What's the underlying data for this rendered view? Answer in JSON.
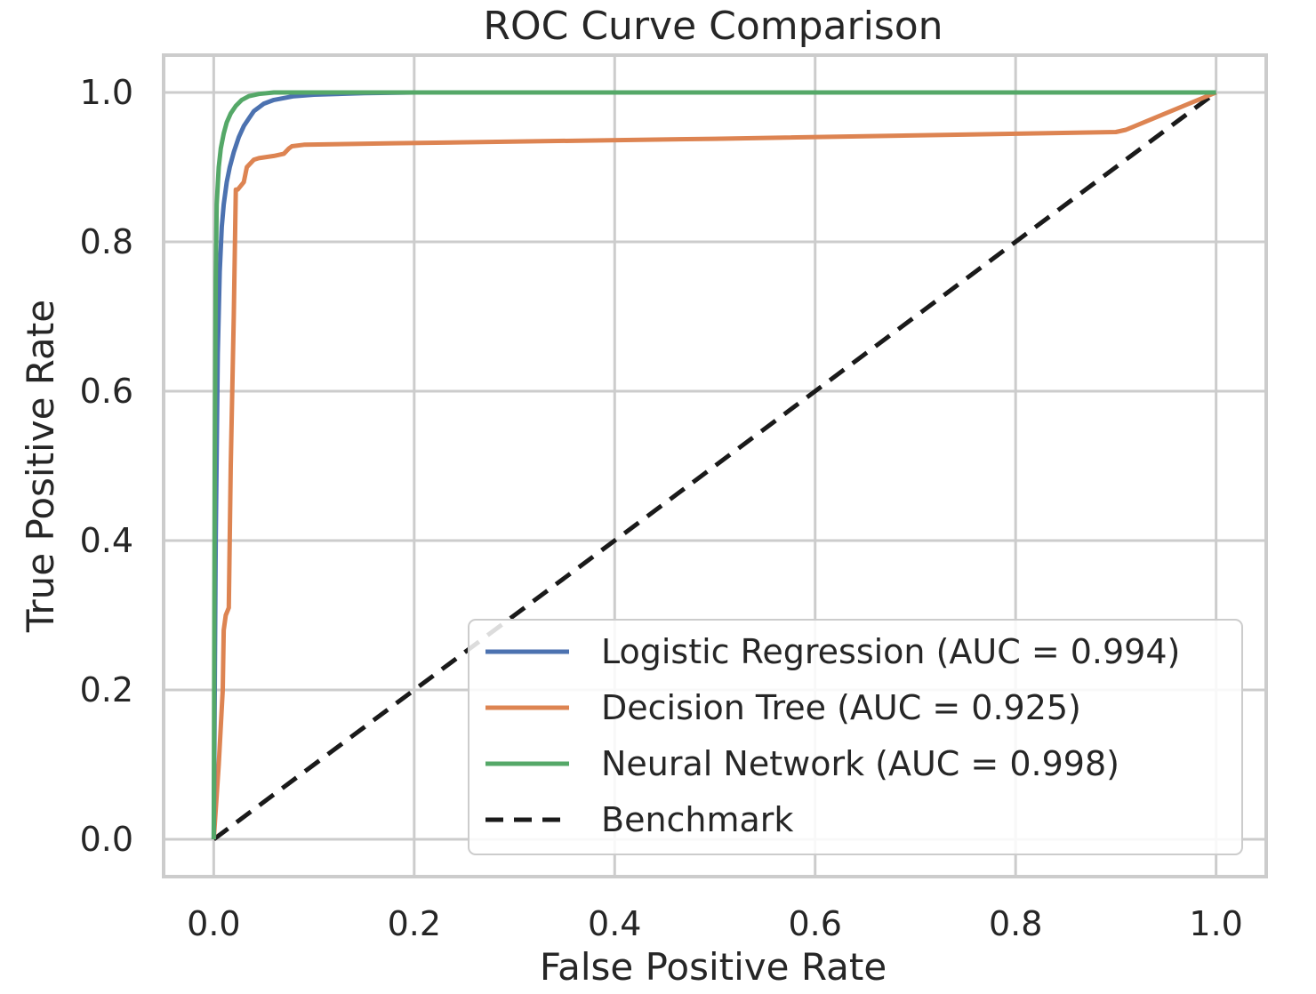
{
  "chart_data": {
    "type": "line",
    "title": "ROC Curve Comparison",
    "xlabel": "False Positive Rate",
    "ylabel": "True Positive Rate",
    "xlim": [
      -0.05,
      1.05
    ],
    "ylim": [
      -0.05,
      1.05
    ],
    "xticks": [
      "0.0",
      "0.2",
      "0.4",
      "0.6",
      "0.8",
      "1.0"
    ],
    "yticks": [
      "0.0",
      "0.2",
      "0.4",
      "0.6",
      "0.8",
      "1.0"
    ],
    "grid": true,
    "legend_position": "lower-right",
    "series": [
      {
        "name": "Logistic Regression (AUC = 0.994)",
        "color": "#4c72b0",
        "style": "solid",
        "x": [
          0,
          0.002,
          0.004,
          0.006,
          0.008,
          0.01,
          0.013,
          0.016,
          0.02,
          0.025,
          0.03,
          0.035,
          0.04,
          0.05,
          0.06,
          0.08,
          0.1,
          0.15,
          0.2,
          0.4,
          0.6,
          0.8,
          1.0
        ],
        "y": [
          0,
          0.4,
          0.65,
          0.76,
          0.82,
          0.85,
          0.88,
          0.9,
          0.92,
          0.94,
          0.955,
          0.965,
          0.975,
          0.985,
          0.99,
          0.995,
          0.997,
          0.999,
          1.0,
          1.0,
          1.0,
          1.0,
          1.0
        ]
      },
      {
        "name": "Decision Tree (AUC = 0.925)",
        "color": "#dd8452",
        "style": "solid",
        "x": [
          0,
          0.005,
          0.009,
          0.01,
          0.012,
          0.015,
          0.017,
          0.02,
          0.022,
          0.024,
          0.03,
          0.033,
          0.04,
          0.045,
          0.06,
          0.07,
          0.075,
          0.078,
          0.09,
          0.18,
          0.5,
          0.9,
          0.91,
          1.0
        ],
        "y": [
          0,
          0.1,
          0.2,
          0.28,
          0.3,
          0.31,
          0.5,
          0.7,
          0.87,
          0.87,
          0.88,
          0.9,
          0.91,
          0.912,
          0.915,
          0.918,
          0.925,
          0.928,
          0.93,
          0.932,
          0.938,
          0.947,
          0.95,
          1.0
        ]
      },
      {
        "name": "Neural Network (AUC = 0.998)",
        "color": "#55a868",
        "style": "solid",
        "x": [
          0,
          0.001,
          0.002,
          0.003,
          0.005,
          0.007,
          0.01,
          0.013,
          0.017,
          0.022,
          0.028,
          0.035,
          0.045,
          0.06,
          0.08,
          0.1,
          0.2,
          0.4,
          0.6,
          0.8,
          1.0
        ],
        "y": [
          0,
          0.5,
          0.75,
          0.85,
          0.9,
          0.925,
          0.945,
          0.96,
          0.972,
          0.982,
          0.99,
          0.995,
          0.998,
          1.0,
          1.0,
          1.0,
          1.0,
          1.0,
          1.0,
          1.0,
          1.0
        ]
      },
      {
        "name": "Benchmark",
        "color": "#1a1a1a",
        "style": "dashed",
        "x": [
          0,
          1.0
        ],
        "y": [
          0,
          1.0
        ]
      }
    ]
  }
}
